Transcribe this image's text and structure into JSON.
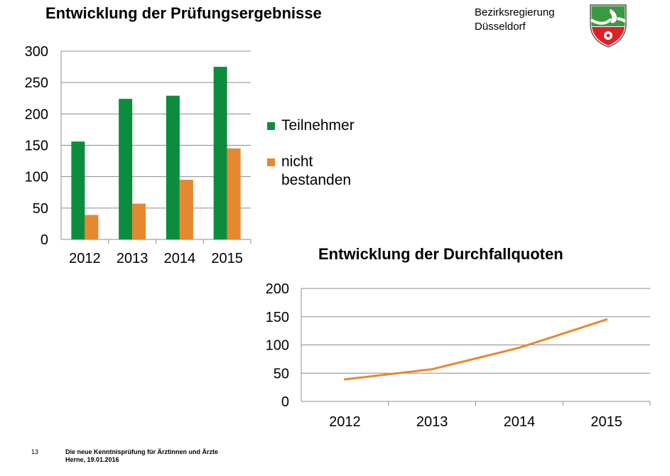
{
  "header": {
    "title": "Entwicklung der Prüfungsergebnisse",
    "authority_line1": "Bezirksregierung",
    "authority_line2": "Düsseldorf"
  },
  "colors": {
    "green": "#0c8d3e",
    "orange": "#e5882f",
    "grid": "#8c8c8c"
  },
  "legend": {
    "item1": "Teilnehmer",
    "item2": "nicht bestanden"
  },
  "line_chart": {
    "title": "Entwicklung der Durchfallquoten"
  },
  "footer": {
    "page_number": "13",
    "line1": "Die neue Kenntnisprüfung für Ärztinnen und Ärzte",
    "line2": "Herne, 19.01.2016"
  },
  "chart_data": [
    {
      "type": "bar",
      "title": "Entwicklung der Prüfungsergebnisse",
      "categories": [
        "2012",
        "2013",
        "2014",
        "2015"
      ],
      "series": [
        {
          "name": "Teilnehmer",
          "values": [
            156,
            224,
            229,
            275
          ]
        },
        {
          "name": "nicht bestanden",
          "values": [
            39,
            57,
            95,
            145
          ]
        }
      ],
      "ylim": [
        0,
        300
      ],
      "yticks": [
        0,
        50,
        100,
        150,
        200,
        250,
        300
      ],
      "grid": true,
      "legend": "right"
    },
    {
      "type": "line",
      "title": "Entwicklung der Durchfallquoten",
      "categories": [
        "2012",
        "2013",
        "2014",
        "2015"
      ],
      "series": [
        {
          "values": [
            39,
            57,
            95,
            145
          ]
        }
      ],
      "ylim": [
        0,
        200
      ],
      "yticks": [
        0,
        50,
        100,
        150,
        200
      ],
      "grid": true
    }
  ]
}
